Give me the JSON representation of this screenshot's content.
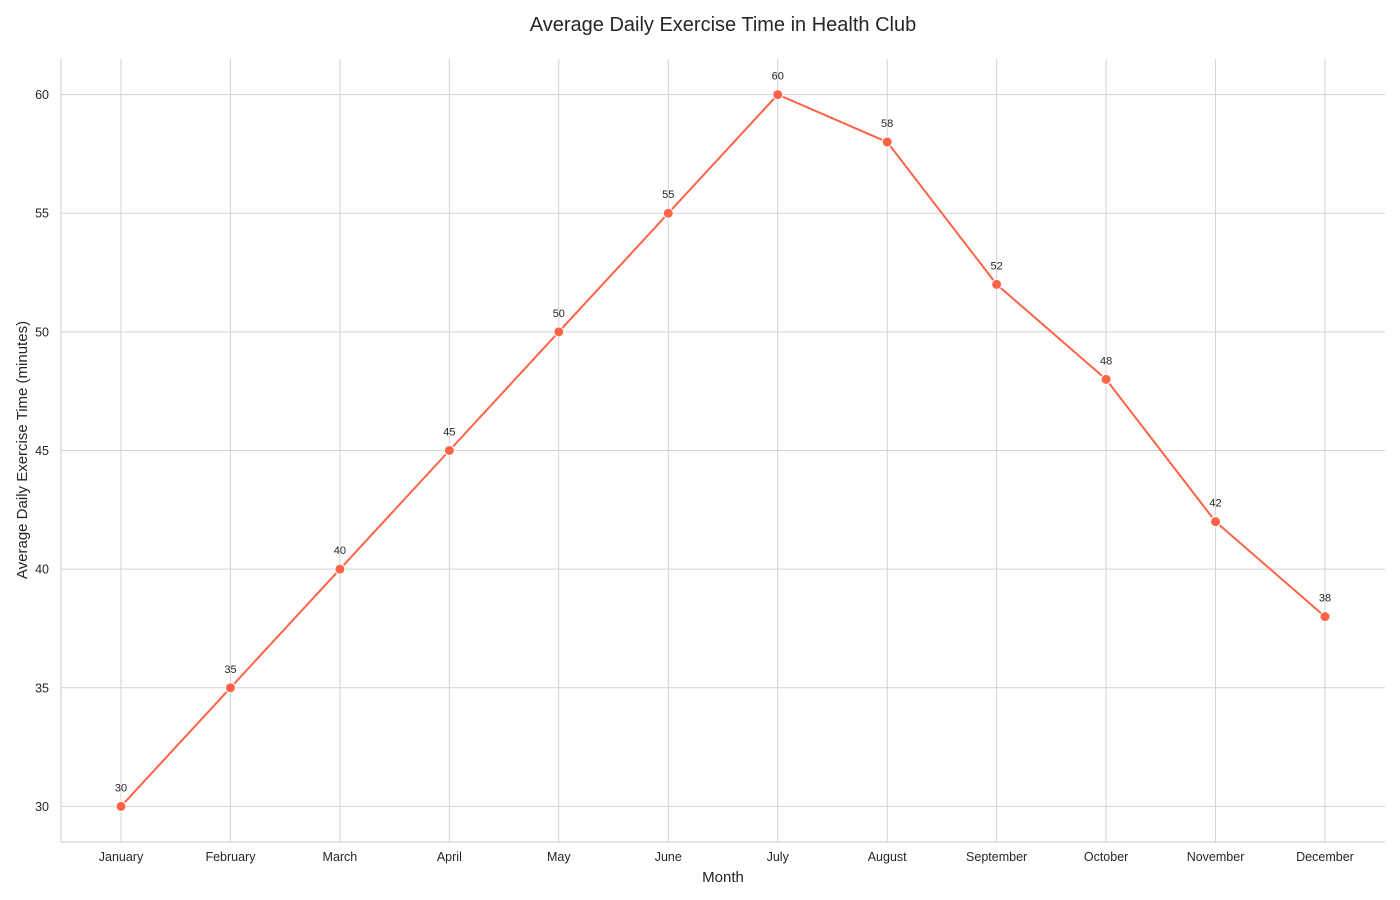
{
  "chart_data": {
    "type": "line",
    "title": "Average Daily Exercise Time in Health Club",
    "xlabel": "Month",
    "ylabel": "Average Daily Exercise Time (minutes)",
    "categories": [
      "January",
      "February",
      "March",
      "April",
      "May",
      "June",
      "July",
      "August",
      "September",
      "October",
      "November",
      "December"
    ],
    "series": [
      {
        "name": "Average Daily Exercise Time",
        "values": [
          30,
          35,
          40,
          45,
          50,
          55,
          60,
          58,
          52,
          48,
          42,
          38
        ],
        "color": "#ff6347"
      }
    ],
    "ylim": [
      28.5,
      61.5
    ],
    "yticks": [
      30,
      35,
      40,
      45,
      50,
      55,
      60
    ],
    "grid": true,
    "data_labels": true
  },
  "colors": {
    "line": "#ff6347",
    "grid": "#d3d3d3",
    "text": "#262626"
  }
}
